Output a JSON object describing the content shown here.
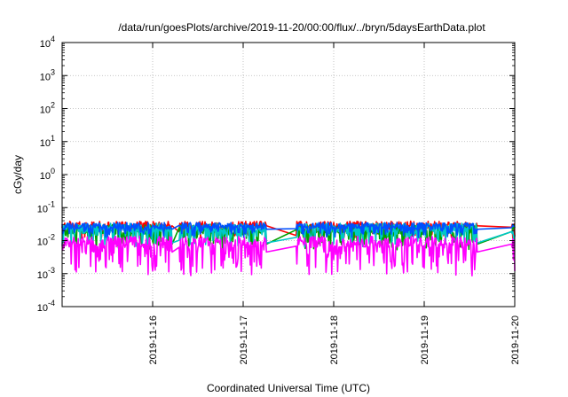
{
  "chart_data": {
    "type": "line",
    "title": "/data/run/goesPlots/archive/2019-11-20/00:00/flux/../bryn/5daysEarthData.plot",
    "xlabel": "Coordinated Universal Time (UTC)",
    "ylabel": "cGy/day",
    "yscale": "log",
    "ylim": [
      0.0001,
      10000
    ],
    "xlim": [
      "2019-11-15 00:00",
      "2019-11-20 00:00"
    ],
    "y_ticks": [
      {
        "base": "10",
        "exp": "-4"
      },
      {
        "base": "10",
        "exp": "-3"
      },
      {
        "base": "10",
        "exp": "-2"
      },
      {
        "base": "10",
        "exp": "-1"
      },
      {
        "base": "10",
        "exp": "0"
      },
      {
        "base": "10",
        "exp": "1"
      },
      {
        "base": "10",
        "exp": "2"
      },
      {
        "base": "10",
        "exp": "3"
      },
      {
        "base": "10",
        "exp": "4"
      }
    ],
    "x_ticks": [
      "2019-11-16",
      "2019-11-17",
      "2019-11-18",
      "2019-11-19",
      "2019-11-20"
    ],
    "grid": true,
    "legend": "none",
    "data_gaps": [
      [
        "2019-11-16 05:00",
        "2019-11-16 07:00"
      ],
      [
        "2019-11-17 06:00",
        "2019-11-17 14:00"
      ],
      [
        "2019-11-19 14:00",
        "2019-11-19 23:00"
      ]
    ],
    "series": [
      {
        "color": "#ff0000",
        "base": 0.03,
        "spread": 0.35,
        "noise": 0.22,
        "gapLevel": 0.028
      },
      {
        "color": "#00a000",
        "base": 0.022,
        "spread": 0.55,
        "noise": 0.28,
        "gapLevel": 0.0078
      },
      {
        "color": "#00c8c8",
        "base": 0.025,
        "spread": 0.5,
        "noise": 0.26,
        "gapLevel": 0.0085
      },
      {
        "color": "#0050ff",
        "base": 0.028,
        "spread": 0.3,
        "noise": 0.2,
        "gapLevel": 0.022
      },
      {
        "color": "#ff00ff",
        "base": 0.009,
        "spread": 0.9,
        "noise": 0.35,
        "gapLevel": 0.0045
      }
    ]
  }
}
